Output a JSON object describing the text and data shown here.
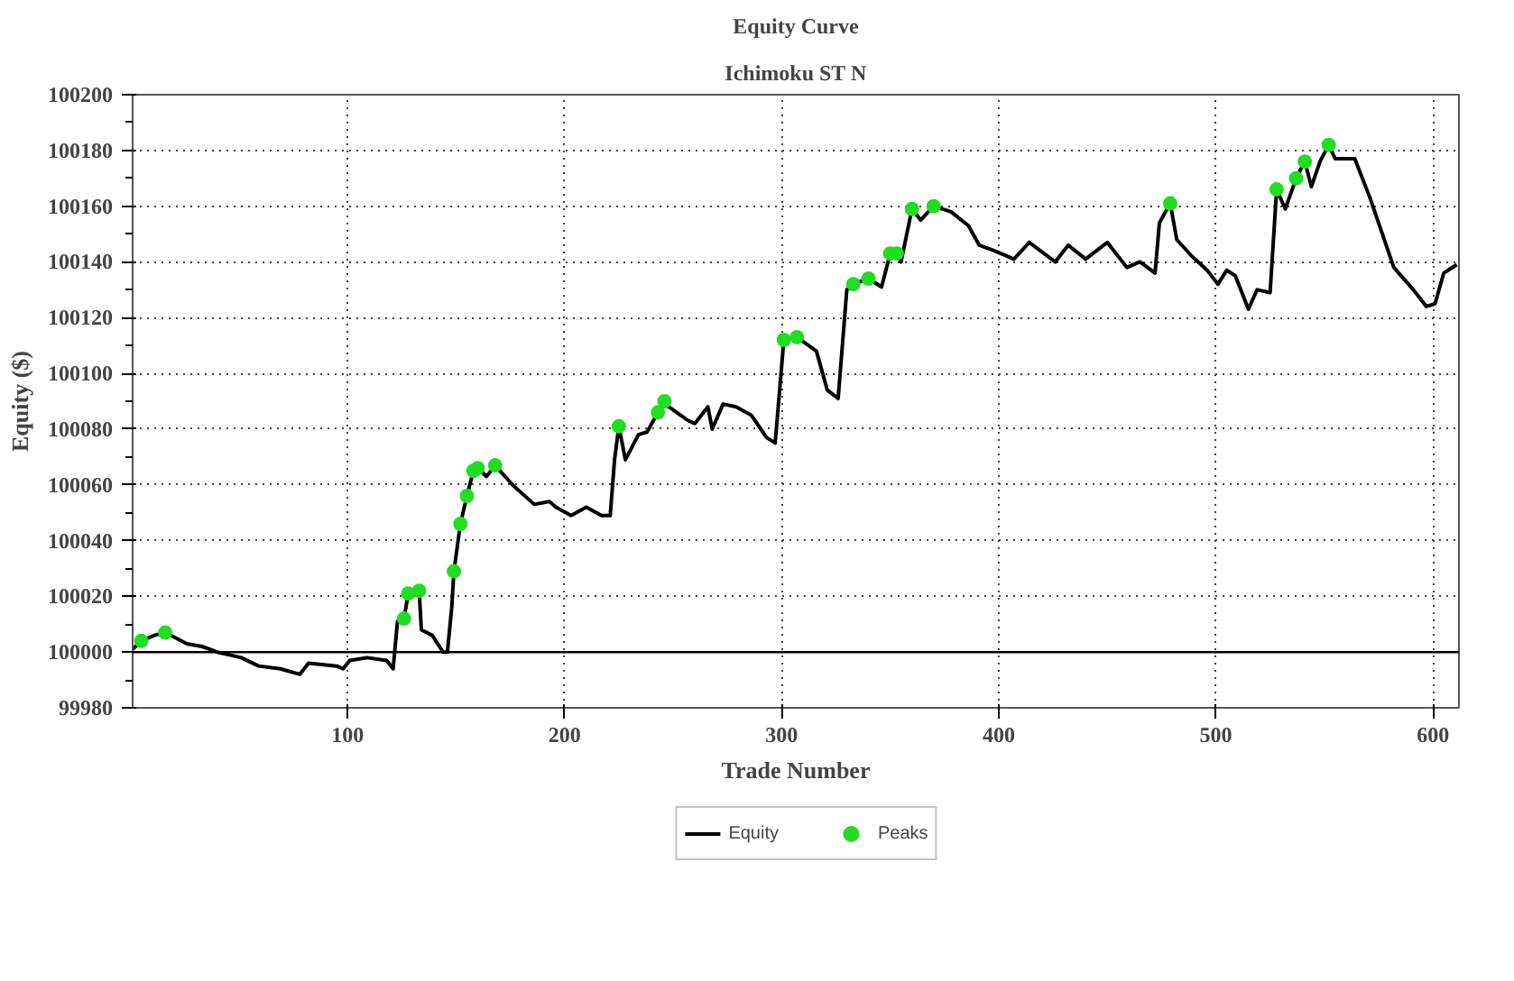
{
  "chart_data": {
    "type": "line",
    "title": "Equity Curve",
    "subtitle": "Ichimoku ST N",
    "xlabel": "Trade Number",
    "ylabel": "Equity ($)",
    "xlim": [
      1,
      612
    ],
    "xticks": [
      100,
      200,
      300,
      400,
      500,
      600
    ],
    "ylim": [
      99980,
      100200
    ],
    "yticks": [
      99980,
      100000,
      100020,
      100040,
      100060,
      100080,
      100100,
      100120,
      100140,
      100160,
      100180,
      100200
    ],
    "grid": true,
    "legend": "bottom",
    "line_style": "solid",
    "ref_lines": [
      {
        "axis": "y",
        "value": 100000,
        "color": "#000000",
        "line_style": "solid"
      }
    ],
    "series": [
      {
        "name": "Equity",
        "type": "line",
        "color": "#000000",
        "marker": "none",
        "x": [
          1,
          5,
          11,
          16,
          26,
          33,
          40,
          51,
          59,
          69,
          78,
          82,
          95,
          98,
          101,
          109,
          118,
          121,
          123,
          126,
          128,
          133,
          134,
          139,
          144,
          146,
          148,
          149,
          152,
          155,
          158,
          160,
          164,
          168,
          176,
          186,
          193,
          196,
          203,
          210,
          217,
          221,
          223,
          225,
          228,
          234,
          238,
          243,
          246,
          248,
          257,
          260,
          266,
          268,
          273,
          279,
          286,
          293,
          297,
          301,
          307,
          316,
          321,
          326,
          330,
          333,
          340,
          346,
          350,
          353,
          355,
          360,
          364,
          370,
          378,
          386,
          391,
          398,
          407,
          414,
          426,
          432,
          440,
          450,
          459,
          465,
          472,
          474,
          479,
          482,
          489,
          496,
          501,
          505,
          509,
          515,
          519,
          525,
          528,
          532,
          537,
          541,
          544,
          548,
          552,
          555,
          564,
          571,
          582,
          591,
          597,
          601,
          605,
          611
        ],
        "values": [
          100001,
          100004,
          100006,
          100007,
          100003,
          100002,
          100000,
          99998,
          99995,
          99994,
          99992,
          99996,
          99995,
          99994,
          99997,
          99998,
          99997,
          99994,
          100011,
          100012,
          100021,
          100022,
          100008,
          100006,
          100000,
          100000,
          100016,
          100029,
          100046,
          100056,
          100065,
          100066,
          100063,
          100067,
          100060,
          100053,
          100054,
          100052,
          100049,
          100052,
          100049,
          100049,
          100069,
          100081,
          100069,
          100078,
          100079,
          100086,
          100090,
          100088,
          100083,
          100082,
          100088,
          100080,
          100089,
          100088,
          100085,
          100077,
          100075,
          100112,
          100113,
          100108,
          100094,
          100091,
          100130,
          100132,
          100134,
          100131,
          100143,
          100143,
          100140,
          100159,
          100155,
          100160,
          100158,
          100153,
          100146,
          100144,
          100141,
          100147,
          100140,
          100146,
          100141,
          100147,
          100138,
          100140,
          100136,
          100154,
          100161,
          100148,
          100142,
          100137,
          100132,
          100137,
          100135,
          100123,
          100130,
          100129,
          100166,
          100159,
          100170,
          100176,
          100167,
          100176,
          100182,
          100177,
          100177,
          100163,
          100138,
          100130,
          100124,
          100125,
          100136,
          100139
        ]
      },
      {
        "name": "Peaks",
        "type": "scatter",
        "color": "#22dd22",
        "marker": "circle",
        "x": [
          5,
          16,
          126,
          128,
          133,
          149,
          152,
          155,
          158,
          160,
          168,
          225,
          243,
          246,
          301,
          307,
          333,
          340,
          350,
          353,
          360,
          370,
          479,
          528,
          537,
          541,
          552
        ],
        "values": [
          100004,
          100007,
          100012,
          100021,
          100022,
          100029,
          100046,
          100056,
          100065,
          100066,
          100067,
          100081,
          100086,
          100090,
          100112,
          100113,
          100132,
          100134,
          100143,
          100143,
          100159,
          100160,
          100161,
          100166,
          100170,
          100176,
          100182
        ]
      }
    ]
  }
}
